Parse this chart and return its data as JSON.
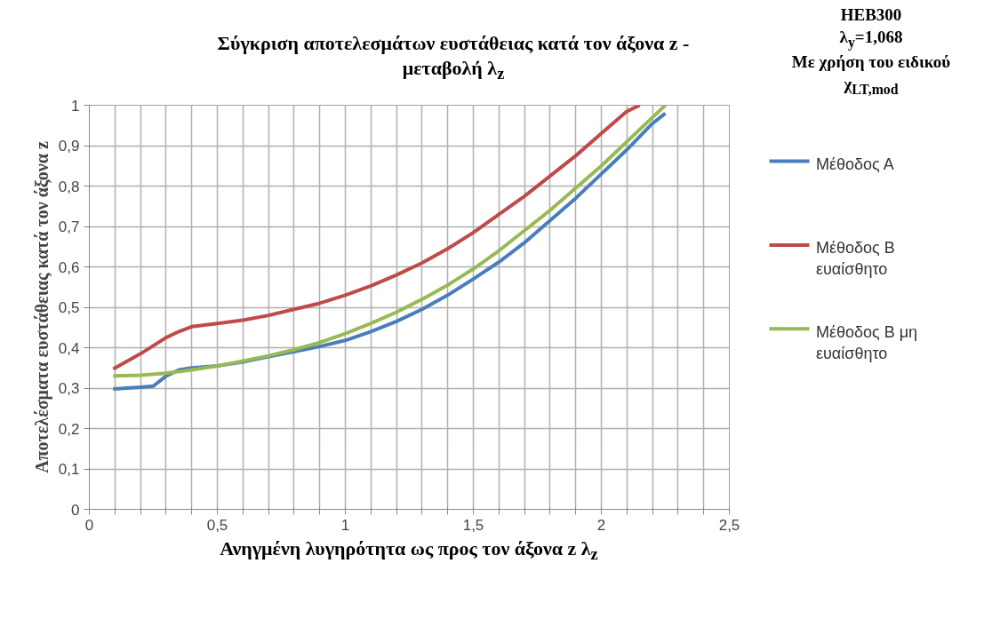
{
  "chart_data": {
    "type": "line",
    "title": "Σύγκριση αποτελεσμάτων ευστάθειας κατά τον άξονα z - μεταβολή λ$_{z}$",
    "xlabel": "Ανηγμένη λυγηρότητα ως προς τον άξονα z  λ$_{z}$",
    "ylabel": "Αποτελέσματα ευστάθειας κατά τον άξονα z",
    "annotations": [
      "HEB300",
      "λ$_{y}$=1,068",
      "Με χρήση του ειδικού χ$_{LT,mod}$"
    ],
    "x": [
      0.093,
      0.2,
      0.25,
      0.3,
      0.35,
      0.4,
      0.5,
      0.6,
      0.7,
      0.8,
      0.9,
      1.0,
      1.1,
      1.2,
      1.3,
      1.4,
      1.5,
      1.6,
      1.7,
      1.8,
      1.9,
      2.0,
      2.1,
      2.2,
      2.25
    ],
    "series": [
      {
        "name": "Μέθοδος Α",
        "color": "#4a7ebb",
        "values": [
          0.298,
          0.302,
          0.305,
          0.33,
          0.345,
          0.35,
          0.355,
          0.365,
          0.378,
          0.39,
          0.403,
          0.418,
          0.44,
          0.465,
          0.495,
          0.53,
          0.57,
          0.612,
          0.66,
          0.715,
          0.77,
          0.83,
          0.89,
          0.955,
          0.98
        ]
      },
      {
        "name": "Μέθοδος Β ευαίσθητο",
        "color": "#be4b48",
        "x": [
          0.093,
          0.2,
          0.3,
          0.35,
          0.4,
          0.5,
          0.6,
          0.7,
          0.8,
          0.9,
          1.0,
          1.1,
          1.2,
          1.3,
          1.4,
          1.5,
          1.6,
          1.7,
          1.8,
          1.9,
          2.0,
          2.1,
          2.15
        ],
        "values": [
          0.347,
          0.385,
          0.425,
          0.44,
          0.452,
          0.46,
          0.468,
          0.48,
          0.495,
          0.51,
          0.53,
          0.553,
          0.58,
          0.61,
          0.645,
          0.685,
          0.73,
          0.775,
          0.825,
          0.875,
          0.93,
          0.985,
          1.0
        ]
      },
      {
        "name": "Μέθοδος Β μη ευαίσθητο",
        "color": "#98b954",
        "x": [
          0.093,
          0.2,
          0.3,
          0.4,
          0.5,
          0.6,
          0.7,
          0.8,
          0.9,
          1.0,
          1.1,
          1.2,
          1.3,
          1.4,
          1.5,
          1.6,
          1.7,
          1.8,
          1.9,
          2.0,
          2.1,
          2.2,
          2.25
        ],
        "values": [
          0.33,
          0.332,
          0.337,
          0.345,
          0.355,
          0.367,
          0.38,
          0.395,
          0.413,
          0.435,
          0.46,
          0.488,
          0.52,
          0.555,
          0.595,
          0.64,
          0.69,
          0.74,
          0.795,
          0.85,
          0.91,
          0.97,
          1.0
        ]
      }
    ],
    "xlim": [
      0,
      2.5
    ],
    "xticks": [
      0,
      {
        "value": 0.1,
        "label": null
      },
      {
        "value": 0.2,
        "label": null
      },
      {
        "value": 0.3,
        "label": null
      },
      {
        "value": 0.4,
        "label": null
      },
      {
        "value": 0.5,
        "label": "0,5"
      },
      {
        "value": 0.6,
        "label": null
      },
      {
        "value": 0.7,
        "label": null
      },
      {
        "value": 0.8,
        "label": null
      },
      {
        "value": 0.9,
        "label": null
      },
      1,
      {
        "value": 1.1,
        "label": null
      },
      {
        "value": 1.2,
        "label": null
      },
      {
        "value": 1.3,
        "label": null
      },
      {
        "value": 1.4,
        "label": null
      },
      {
        "value": 1.5,
        "label": "1,5"
      },
      {
        "value": 1.6,
        "label": null
      },
      {
        "value": 1.7,
        "label": null
      },
      {
        "value": 1.8,
        "label": null
      },
      {
        "value": 1.9,
        "label": null
      },
      2,
      {
        "value": 2.1,
        "label": null
      },
      {
        "value": 2.2,
        "label": null
      },
      {
        "value": 2.3,
        "label": null
      },
      {
        "value": 2.4,
        "label": null
      },
      {
        "value": 2.5,
        "label": "2,5"
      }
    ],
    "ylim": [
      0,
      1
    ],
    "yticks": [
      0,
      {
        "value": 0.1,
        "label": "0,1"
      },
      {
        "value": 0.2,
        "label": "0,2"
      },
      {
        "value": 0.3,
        "label": "0,3"
      },
      {
        "value": 0.4,
        "label": "0,4"
      },
      {
        "value": 0.5,
        "label": "0,5"
      },
      {
        "value": 0.6,
        "label": "0,6"
      },
      {
        "value": 0.7,
        "label": "0,7"
      },
      {
        "value": 0.8,
        "label": "0,8"
      },
      {
        "value": 0.9,
        "label": "0,9"
      },
      1
    ],
    "grid": true,
    "legend": "right",
    "marker": "none",
    "line_style": "solid"
  }
}
